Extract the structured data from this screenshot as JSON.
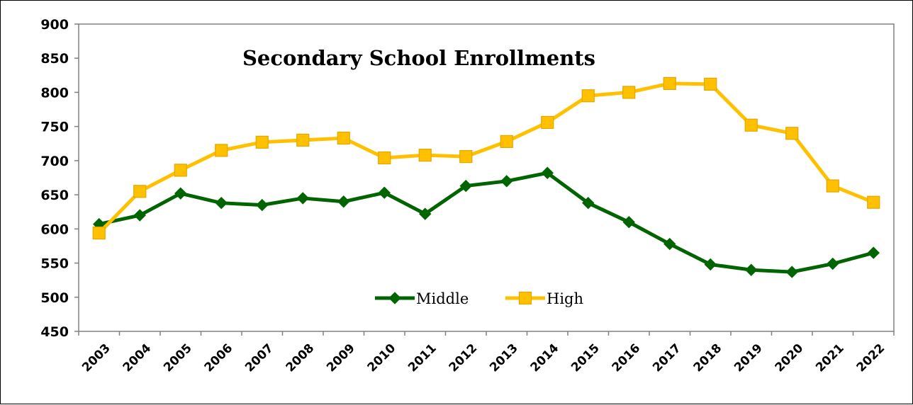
{
  "chart_data": {
    "type": "line",
    "title": "Secondary School Enrollments",
    "xlabel": "",
    "ylabel": "",
    "categories": [
      "2003",
      "2004",
      "2005",
      "2006",
      "2007",
      "2008",
      "2009",
      "2010",
      "2011",
      "2012",
      "2013",
      "2014",
      "2015",
      "2016",
      "2017",
      "2018",
      "2019",
      "2020",
      "2021",
      "2022"
    ],
    "ylim": [
      450,
      900
    ],
    "yticks": [
      450,
      500,
      550,
      600,
      650,
      700,
      750,
      800,
      850,
      900
    ],
    "grid": false,
    "legend_position": "bottom-center",
    "series": [
      {
        "name": "Middle",
        "color": "#006400",
        "marker": "diamond",
        "values": [
          607,
          620,
          652,
          638,
          635,
          645,
          640,
          653,
          622,
          663,
          670,
          682,
          638,
          610,
          578,
          548,
          540,
          537,
          549,
          565
        ]
      },
      {
        "name": "High",
        "color": "#FFC000",
        "marker": "square",
        "values": [
          594,
          655,
          686,
          715,
          727,
          730,
          733,
          704,
          708,
          706,
          728,
          756,
          795,
          800,
          813,
          812,
          752,
          740,
          663,
          639
        ]
      }
    ]
  }
}
